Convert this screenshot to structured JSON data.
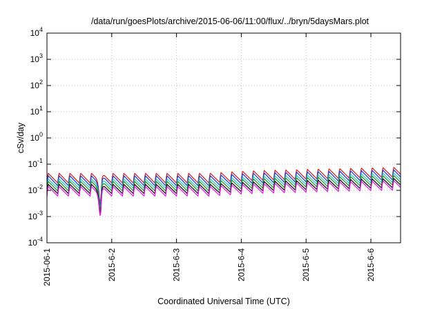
{
  "chart_data": {
    "type": "line",
    "title": "/data/run/goesPlots/archive/2015-06-06/11:00/flux/../bryn/5daysMars.plot",
    "xlabel": "Coordinated Universal Time (UTC)",
    "ylabel": "cSv/day",
    "yscale": "log",
    "ylim": [
      0.0001,
      10000
    ],
    "xlim": [
      "2015-06-01",
      "2015-06-06 11:00"
    ],
    "grid": true,
    "legend": "none",
    "y_ticks": [
      {
        "base": "10",
        "exp": "4",
        "value": 10000
      },
      {
        "base": "10",
        "exp": "3",
        "value": 1000
      },
      {
        "base": "10",
        "exp": "2",
        "value": 100
      },
      {
        "base": "10",
        "exp": "1",
        "value": 10
      },
      {
        "base": "10",
        "exp": "0",
        "value": 1
      },
      {
        "base": "10",
        "exp": "-1",
        "value": 0.1
      },
      {
        "base": "10",
        "exp": "-2",
        "value": 0.01
      },
      {
        "base": "10",
        "exp": "-3",
        "value": 0.001
      },
      {
        "base": "10",
        "exp": "-4",
        "value": 0.0001
      }
    ],
    "x_ticks": [
      "2015-06-1",
      "2015-6-2",
      "2015-6-3",
      "2015-6-4",
      "2015-6-5",
      "2015-6-6"
    ],
    "x_days": [
      "2015-06-01",
      "2015-06-02",
      "2015-06-03",
      "2015-06-04",
      "2015-06-05",
      "2015-06-06"
    ],
    "cycle_hours": 4,
    "series": [
      {
        "color": "#d62728",
        "peak": 0.045,
        "trough": 0.019
      },
      {
        "color": "#1f3fd6",
        "peak": 0.036,
        "trough": 0.015
      },
      {
        "color": "#2ec4c4",
        "peak": 0.027,
        "trough": 0.012
      },
      {
        "color": "#2a8f2a",
        "peak": 0.022,
        "trough": 0.0095
      },
      {
        "color": "#111111",
        "peak": 0.017,
        "trough": 0.0075
      },
      {
        "color": "#e61ee6",
        "peak": 0.014,
        "trough": 0.006
      }
    ],
    "trend": [
      {
        "day": 0,
        "factor": 1.0
      },
      {
        "day": 2.5,
        "factor": 1.0
      },
      {
        "day": 3.2,
        "factor": 1.25
      },
      {
        "day": 4.5,
        "factor": 1.5
      },
      {
        "day": 5.46,
        "factor": 1.7
      }
    ],
    "dips": [
      {
        "day": 0.82,
        "factor": 0.17
      }
    ]
  }
}
